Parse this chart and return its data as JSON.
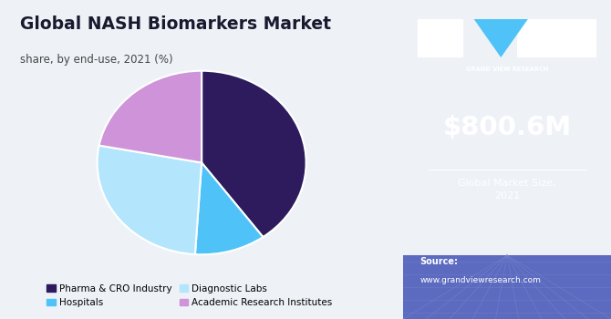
{
  "title": "Global NASH Biomarkers Market",
  "subtitle": "share, by end-use, 2021 (%)",
  "slices": [
    {
      "label": "Pharma & CRO Industry",
      "value": 40,
      "color": "#2d1b5e"
    },
    {
      "label": "Hospitals",
      "value": 11,
      "color": "#4fc3f7"
    },
    {
      "label": "Diagnostic Labs",
      "value": 27,
      "color": "#b3e5fc"
    },
    {
      "label": "Academic Research Institutes",
      "value": 22,
      "color": "#ce93d8"
    }
  ],
  "legend_labels": [
    "Pharma & CRO Industry",
    "Hospitals",
    "Diagnostic Labs",
    "Academic Research Institutes"
  ],
  "legend_colors": [
    "#2d1b5e",
    "#4fc3f7",
    "#b3e5fc",
    "#ce93d8"
  ],
  "sidebar_bg": "#3b1f6b",
  "market_value": "$800.6M",
  "market_label": "Global Market Size,\n2021",
  "source_label": "Source:",
  "source_url": "www.grandviewresearch.com",
  "main_bg": "#eef2f7",
  "title_color": "#1a1a2e",
  "subtitle_color": "#444444",
  "gvr_text": "GRAND VIEW RESEARCH",
  "bottom_grid_color": "#5c6bc0",
  "logo_left_color": "#ffffff",
  "logo_right_color": "#ffffff",
  "logo_triangle_color": "#4fc3f7"
}
